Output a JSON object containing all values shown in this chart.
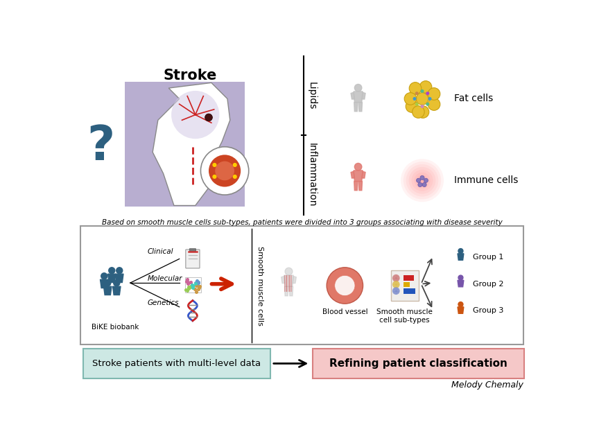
{
  "bg_color": "#ffffff",
  "title_stroke": "Stroke",
  "subtitle_italic": "Based on smooth muscle cells sub-types, patients were divided into 3 groups associating with disease severity",
  "lipids_label": "Lipids",
  "inflammation_label": "Inflammation",
  "fat_cells_label": "Fat cells",
  "immune_cells_label": "Immune cells",
  "bike_label": "BiKE biobank",
  "clinical_label": "Clinical",
  "molecular_label": "Molecular",
  "genetics_label": "Genetics",
  "smooth_muscle_label": "Smooth muscle cells",
  "blood_vessel_label": "Blood vessel",
  "smooth_muscle_sub_label": "Smooth muscle\ncell sub-types",
  "group1_label": "Group 1",
  "group2_label": "Group 2",
  "group3_label": "Group 3",
  "box1_label": "Stroke patients with multi-level data",
  "box2_label": "Refining patient classification",
  "credit_label": "Melody Chemaly",
  "box1_facecolor": "#cde8e4",
  "box1_edgecolor": "#80b8b0",
  "box2_facecolor": "#f5c8c8",
  "box2_edgecolor": "#d88080",
  "stroke_box_color": "#b8aed0",
  "group1_color": "#2d6080",
  "group2_color": "#7755aa",
  "group3_color": "#cc5511",
  "arrow_color_red": "#cc2200",
  "arrow_color_dark": "#333333",
  "teal_person_color": "#2d6080",
  "question_color": "#2d6080"
}
